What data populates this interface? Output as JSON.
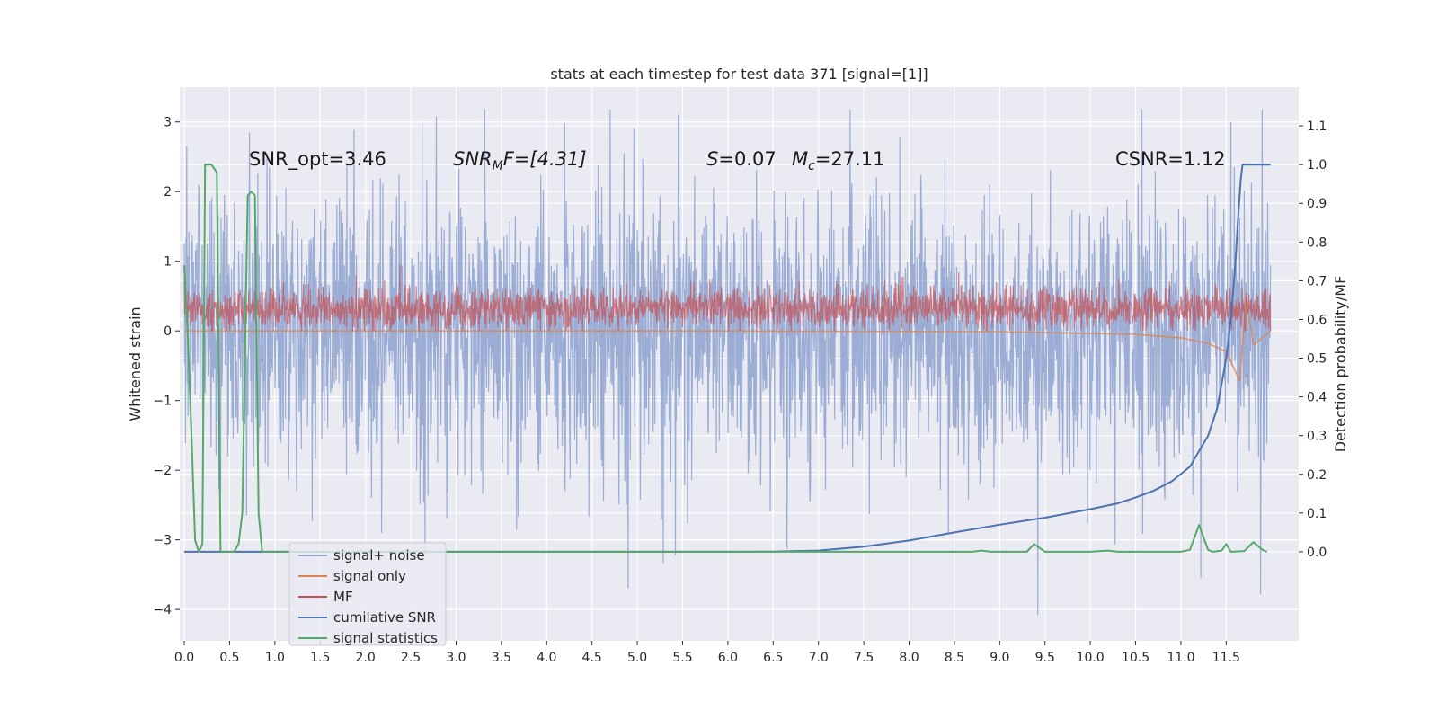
{
  "chart_data": {
    "type": "line",
    "title": "stats at each timestep for test data 371 [signal=[1]]",
    "ylabel_left": "Whitened strain",
    "ylabel_right": "Detection probability/MF",
    "xlim": [
      -0.05,
      12.3
    ],
    "ylim_left": [
      -4.45,
      3.5
    ],
    "ylim_right": [
      -0.23,
      1.2
    ],
    "grid": true,
    "legend_position": "lower-left",
    "x_ticks": [
      0.0,
      0.5,
      1.0,
      1.5,
      2.0,
      2.5,
      3.0,
      3.5,
      4.0,
      4.5,
      5.0,
      5.5,
      6.0,
      6.5,
      7.0,
      7.5,
      8.0,
      8.5,
      9.0,
      9.5,
      10.0,
      10.5,
      11.0,
      11.5
    ],
    "x_tick_labels": [
      "0.0",
      "0.5",
      "1.0",
      "1.5",
      "2.0",
      "2.5",
      "3.0",
      "3.5",
      "4.0",
      "4.5",
      "5.0",
      "5.5",
      "6.0",
      "6.5",
      "7.0",
      "7.5",
      "8.0",
      "8.5",
      "9.0",
      "9.5",
      "10.0",
      "10.5",
      "11.0",
      "11.5"
    ],
    "y_ticks_left": [
      3,
      2,
      1,
      0,
      -1,
      -2,
      -3,
      -4
    ],
    "y_tick_labels_left": [
      "3",
      "2",
      "1",
      "0",
      "−1",
      "−2",
      "−3",
      "−4"
    ],
    "y_ticks_right": [
      1.1,
      1.0,
      0.9,
      0.8,
      0.7,
      0.6,
      0.5,
      0.4,
      0.3,
      0.2,
      0.1,
      0.0
    ],
    "y_tick_labels_right": [
      "1.1",
      "1.0",
      "0.9",
      "0.8",
      "0.7",
      "0.6",
      "0.5",
      "0.4",
      "0.3",
      "0.2",
      "0.1",
      "0.0"
    ],
    "annotations": {
      "snr_opt": "SNR_opt=3.46",
      "snr_mf_main": "SNR",
      "snr_mf_sub": "M",
      "snr_mf_rest": "F=[4.31]",
      "s_var": "S",
      "s_rest": "=0.07",
      "mc_var": "M",
      "mc_sub": "c",
      "mc_rest": "=27.11",
      "csnr": "CSNR=1.12"
    },
    "legend": [
      "signal+ noise",
      "signal only",
      "MF",
      "cumilative SNR",
      "signal statistics"
    ],
    "series": [
      {
        "name": "signal+ noise",
        "axis": "left",
        "color": "#8da2cf",
        "x_range": [
          0.0,
          11.99
        ],
        "band": {
          "mean": 0.0,
          "sigma": 1.0,
          "min": -4.1,
          "max": 3.18
        },
        "peaks": [
          {
            "x": 0.72,
            "y": 2.85
          },
          {
            "x": 2.78,
            "y": 3.08
          },
          {
            "x": 4.7,
            "y": 3.18
          },
          {
            "x": 5.42,
            "y": -3.22
          },
          {
            "x": 9.42,
            "y": -4.08
          },
          {
            "x": 11.55,
            "y": 3.0
          },
          {
            "x": 11.88,
            "y": -3.78
          }
        ]
      },
      {
        "name": "signal only",
        "axis": "left",
        "color": "#dd8452",
        "x_range": [
          0.0,
          11.99
        ],
        "points": [
          [
            0.0,
            0.0
          ],
          [
            6.0,
            0.0
          ],
          [
            9.0,
            -0.01
          ],
          [
            10.5,
            -0.05
          ],
          [
            11.0,
            -0.1
          ],
          [
            11.3,
            -0.18
          ],
          [
            11.5,
            -0.3
          ],
          [
            11.65,
            -0.72
          ],
          [
            11.72,
            0.5
          ],
          [
            11.8,
            -0.2
          ],
          [
            11.99,
            0.0
          ]
        ]
      },
      {
        "name": "MF",
        "axis": "left",
        "color": "#c44e52",
        "x_range": [
          0.0,
          11.99
        ],
        "band": {
          "mean": 0.32,
          "sigma": 0.15,
          "min": 0.0,
          "max": 0.95
        }
      },
      {
        "name": "cumilative SNR",
        "axis": "right",
        "color": "#4c72b0",
        "points": [
          [
            0.0,
            0.0
          ],
          [
            0.5,
            0.0
          ],
          [
            1.0,
            0.0
          ],
          [
            1.5,
            0.0
          ],
          [
            2.0,
            0.0
          ],
          [
            3.0,
            0.0
          ],
          [
            4.0,
            0.0
          ],
          [
            5.0,
            0.0
          ],
          [
            6.0,
            0.0
          ],
          [
            6.5,
            0.0005
          ],
          [
            7.0,
            0.003
          ],
          [
            7.5,
            0.013
          ],
          [
            8.0,
            0.029
          ],
          [
            8.5,
            0.05
          ],
          [
            9.0,
            0.07
          ],
          [
            9.5,
            0.088
          ],
          [
            10.0,
            0.11
          ],
          [
            10.3,
            0.125
          ],
          [
            10.5,
            0.14
          ],
          [
            10.7,
            0.158
          ],
          [
            10.9,
            0.182
          ],
          [
            11.1,
            0.22
          ],
          [
            11.3,
            0.3
          ],
          [
            11.4,
            0.37
          ],
          [
            11.5,
            0.5
          ],
          [
            11.55,
            0.6
          ],
          [
            11.6,
            0.74
          ],
          [
            11.63,
            0.86
          ],
          [
            11.66,
            0.96
          ],
          [
            11.68,
            1.0
          ],
          [
            11.99,
            1.0
          ]
        ]
      },
      {
        "name": "signal statistics",
        "axis": "right",
        "color": "#55a868",
        "points": [
          [
            0.0,
            0.74
          ],
          [
            0.04,
            0.55
          ],
          [
            0.08,
            0.3
          ],
          [
            0.12,
            0.03
          ],
          [
            0.16,
            0.0
          ],
          [
            0.2,
            0.02
          ],
          [
            0.23,
            1.0
          ],
          [
            0.3,
            1.0
          ],
          [
            0.36,
            0.98
          ],
          [
            0.4,
            0.0
          ],
          [
            0.55,
            0.0
          ],
          [
            0.6,
            0.02
          ],
          [
            0.64,
            0.1
          ],
          [
            0.7,
            0.92
          ],
          [
            0.74,
            0.93
          ],
          [
            0.78,
            0.92
          ],
          [
            0.82,
            0.1
          ],
          [
            0.86,
            0.0
          ],
          [
            1.0,
            0.0
          ],
          [
            2.0,
            0.0
          ],
          [
            4.0,
            0.0
          ],
          [
            6.0,
            0.0
          ],
          [
            8.0,
            0.0
          ],
          [
            8.7,
            0.0
          ],
          [
            8.8,
            0.003
          ],
          [
            8.9,
            0.0
          ],
          [
            9.3,
            0.0
          ],
          [
            9.38,
            0.02
          ],
          [
            9.5,
            0.0
          ],
          [
            10.0,
            0.0
          ],
          [
            10.2,
            0.003
          ],
          [
            10.3,
            0.0
          ],
          [
            11.0,
            0.0
          ],
          [
            11.1,
            0.005
          ],
          [
            11.2,
            0.069
          ],
          [
            11.3,
            0.005
          ],
          [
            11.35,
            0.0
          ],
          [
            11.45,
            0.003
          ],
          [
            11.5,
            0.02
          ],
          [
            11.55,
            0.0
          ],
          [
            11.7,
            0.002
          ],
          [
            11.8,
            0.025
          ],
          [
            11.9,
            0.005
          ],
          [
            11.95,
            0.0
          ]
        ]
      }
    ]
  },
  "colors": {
    "page_bg": "#ffffff",
    "axes_bg": "#eaeaf2",
    "grid": "#ffffff",
    "signal_noise": "#8da2cf",
    "signal_only": "#dd8452",
    "mf": "#c44e52",
    "cumulative_snr": "#4c72b0",
    "signal_statistics": "#55a868"
  }
}
